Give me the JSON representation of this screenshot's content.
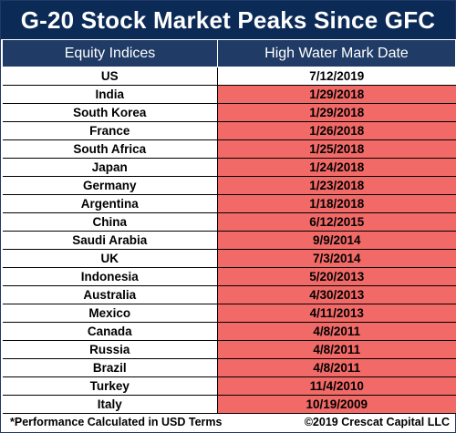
{
  "title": "G-20 Stock Market Peaks Since GFC",
  "chart_data": {
    "type": "table",
    "columns": [
      "Equity Indices",
      "High Water Mark Date"
    ],
    "rows": [
      {
        "country": "US",
        "date": "7/12/2019",
        "highlight": false
      },
      {
        "country": "India",
        "date": "1/29/2018",
        "highlight": true
      },
      {
        "country": "South Korea",
        "date": "1/29/2018",
        "highlight": true
      },
      {
        "country": "France",
        "date": "1/26/2018",
        "highlight": true
      },
      {
        "country": "South Africa",
        "date": "1/25/2018",
        "highlight": true
      },
      {
        "country": "Japan",
        "date": "1/24/2018",
        "highlight": true
      },
      {
        "country": "Germany",
        "date": "1/23/2018",
        "highlight": true
      },
      {
        "country": "Argentina",
        "date": "1/18/2018",
        "highlight": true
      },
      {
        "country": "China",
        "date": "6/12/2015",
        "highlight": true
      },
      {
        "country": "Saudi Arabia",
        "date": "9/9/2014",
        "highlight": true
      },
      {
        "country": "UK",
        "date": "7/3/2014",
        "highlight": true
      },
      {
        "country": "Indonesia",
        "date": "5/20/2013",
        "highlight": true
      },
      {
        "country": "Australia",
        "date": "4/30/2013",
        "highlight": true
      },
      {
        "country": "Mexico",
        "date": "4/11/2013",
        "highlight": true
      },
      {
        "country": "Canada",
        "date": "4/8/2011",
        "highlight": true
      },
      {
        "country": "Russia",
        "date": "4/8/2011",
        "highlight": true
      },
      {
        "country": "Brazil",
        "date": "4/8/2011",
        "highlight": true
      },
      {
        "country": "Turkey",
        "date": "11/4/2010",
        "highlight": true
      },
      {
        "country": "Italy",
        "date": "10/19/2009",
        "highlight": true
      }
    ]
  },
  "footnote": "*Performance Calculated in USD Terms",
  "credit": "©2019 Crescat Capital LLC",
  "colors": {
    "title_bg": "#0b2a56",
    "header_bg": "#1f3b66",
    "highlight": "#f26a67"
  }
}
